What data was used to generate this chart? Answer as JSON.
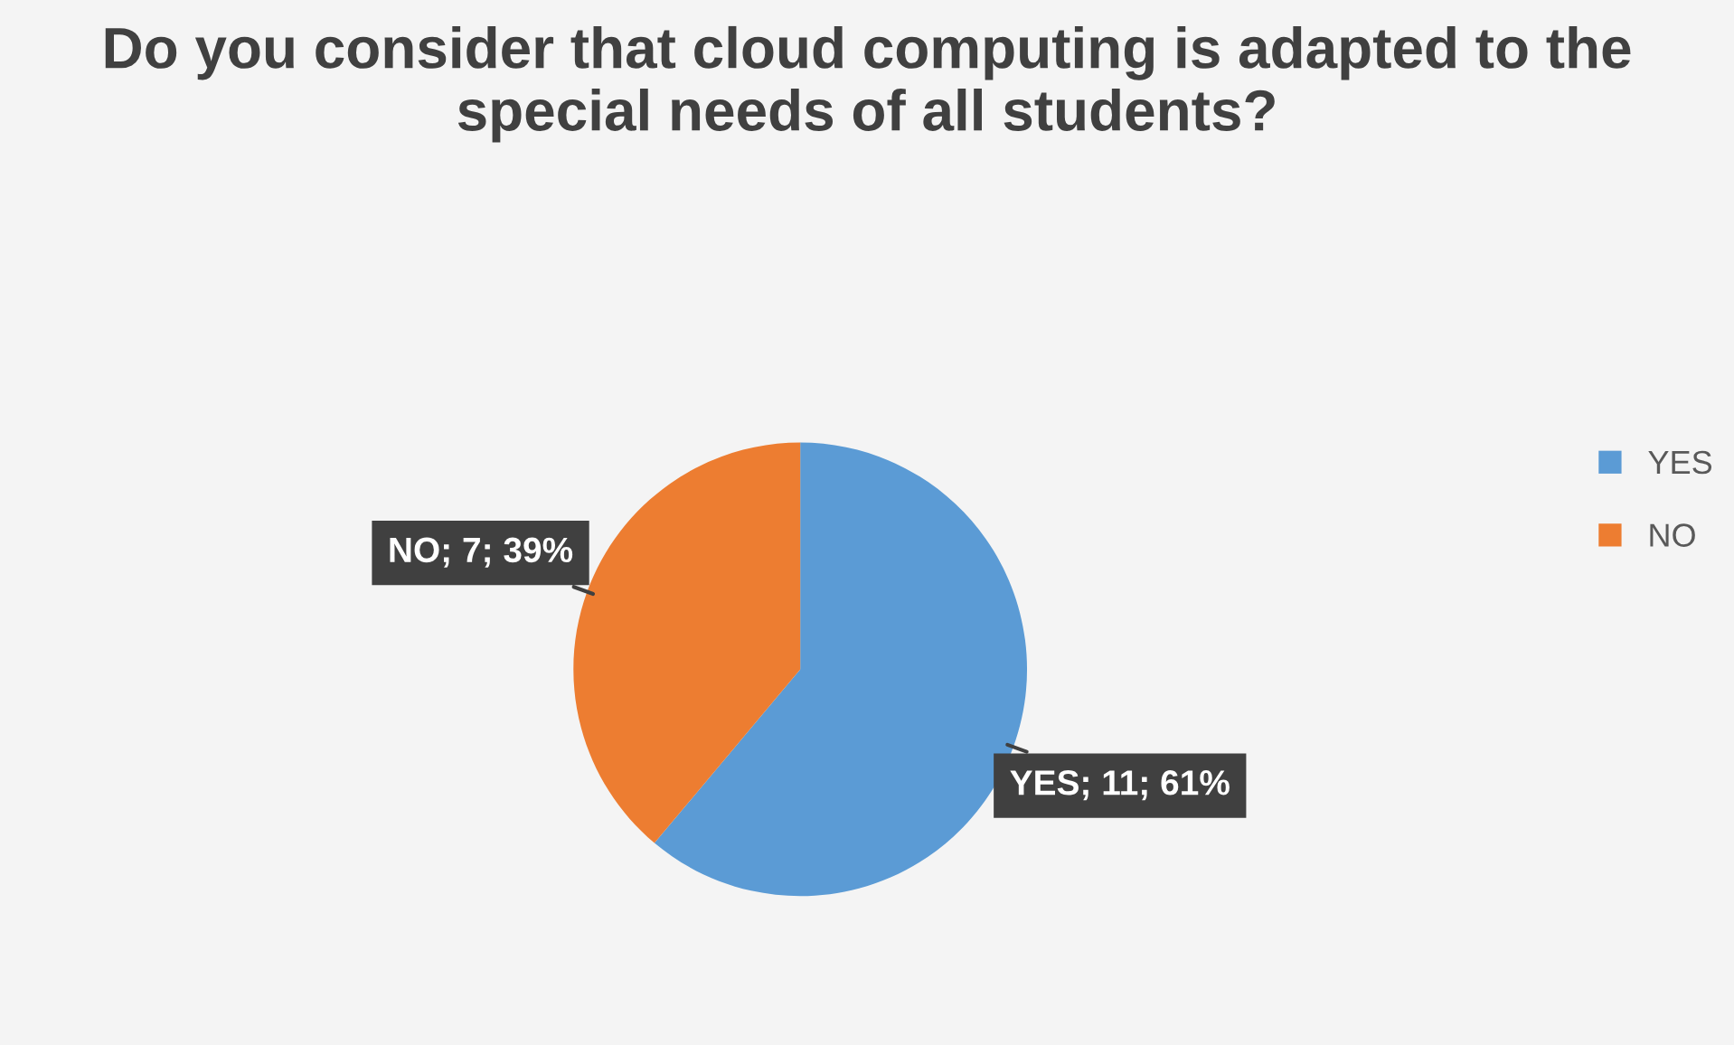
{
  "chart_data": {
    "type": "pie",
    "title": "Do you consider that cloud computing is adapted to the special needs of all students?",
    "categories": [
      "YES",
      "NO"
    ],
    "values": [
      11,
      7
    ],
    "colors": [
      "#5b9bd5",
      "#ed7d31"
    ],
    "value_labels": [
      "YES; 11; 61%",
      "NO; 7; 39%"
    ],
    "legend": "right"
  }
}
